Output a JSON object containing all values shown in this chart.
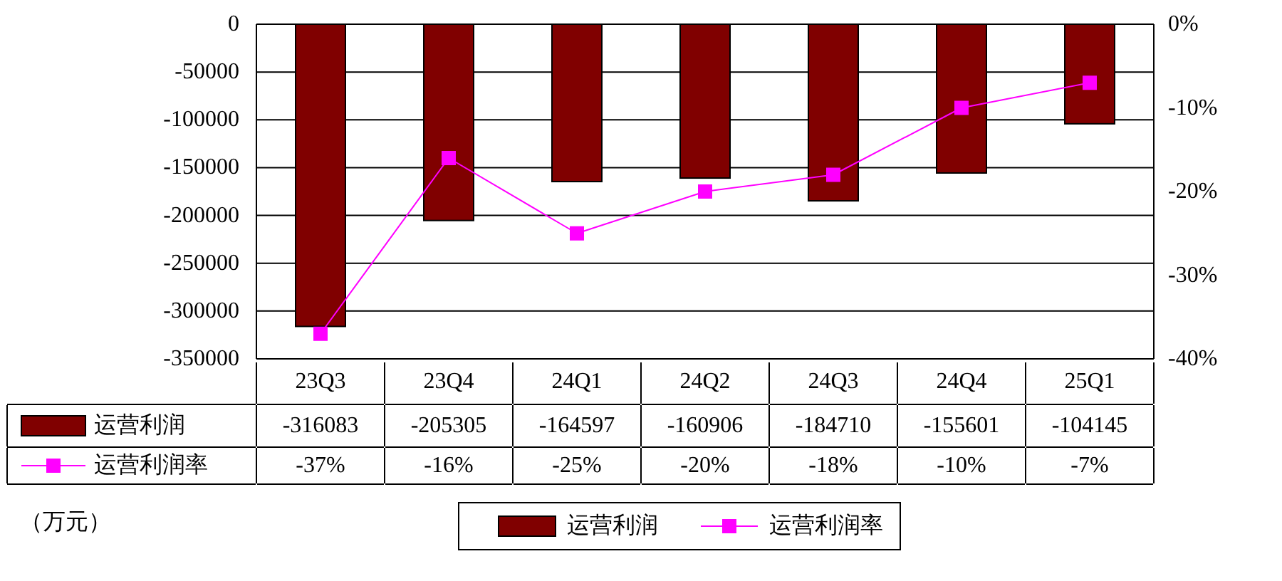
{
  "chart_data": {
    "type": "bar",
    "categories": [
      "23Q3",
      "23Q4",
      "24Q1",
      "24Q2",
      "24Q3",
      "24Q4",
      "25Q1"
    ],
    "series": [
      {
        "name": "运营利润",
        "type": "bar",
        "color": "#800000",
        "values": [
          -316083,
          -205305,
          -164597,
          -160906,
          -184710,
          -155601,
          -104145
        ],
        "value_labels": [
          "-316083",
          "-205305",
          "-164597",
          "-160906",
          "-184710",
          "-155601",
          "-104145"
        ]
      },
      {
        "name": "运营利润率",
        "type": "line",
        "axis": "y2",
        "color": "#ff00ff",
        "marker": "square",
        "values": [
          -37,
          -16,
          -25,
          -20,
          -18,
          -10,
          -7
        ],
        "value_labels": [
          "-37%",
          "-16%",
          "-25%",
          "-20%",
          "-18%",
          "-10%",
          "-7%"
        ]
      }
    ],
    "ylim": [
      -350000,
      0
    ],
    "yticks": [
      0,
      -50000,
      -100000,
      -150000,
      -200000,
      -250000,
      -300000,
      -350000
    ],
    "y2lim": [
      -40,
      0
    ],
    "y2ticks": [
      {
        "value": 0,
        "label": "0%"
      },
      {
        "value": -10,
        "label": "-10%"
      },
      {
        "value": -20,
        "label": "-20%"
      },
      {
        "value": -30,
        "label": "-30%"
      },
      {
        "value": -40,
        "label": "-40%"
      }
    ],
    "grid": "y",
    "legend": "bottom",
    "annotations": [
      "（万元）"
    ]
  }
}
